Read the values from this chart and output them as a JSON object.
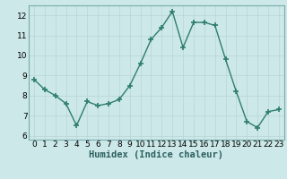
{
  "x": [
    0,
    1,
    2,
    3,
    4,
    5,
    6,
    7,
    8,
    9,
    10,
    11,
    12,
    13,
    14,
    15,
    16,
    17,
    18,
    19,
    20,
    21,
    22,
    23
  ],
  "y": [
    8.8,
    8.3,
    8.0,
    7.6,
    6.5,
    7.7,
    7.5,
    7.6,
    7.8,
    8.5,
    9.6,
    10.8,
    11.4,
    12.2,
    10.4,
    11.65,
    11.65,
    11.5,
    9.8,
    8.2,
    6.7,
    6.4,
    7.2,
    7.3
  ],
  "line_color": "#2e7d6e",
  "marker": "+",
  "markersize": 4,
  "linewidth": 1.0,
  "xlim": [
    -0.5,
    23.5
  ],
  "ylim": [
    5.8,
    12.5
  ],
  "yticks": [
    6,
    7,
    8,
    9,
    10,
    11,
    12
  ],
  "xticks": [
    0,
    1,
    2,
    3,
    4,
    5,
    6,
    7,
    8,
    9,
    10,
    11,
    12,
    13,
    14,
    15,
    16,
    17,
    18,
    19,
    20,
    21,
    22,
    23
  ],
  "xlabel": "Humidex (Indice chaleur)",
  "bg_color": "#cce8e8",
  "grid_color": "#b8d4d4",
  "tick_label_fontsize": 6.5,
  "xlabel_fontsize": 7.5
}
